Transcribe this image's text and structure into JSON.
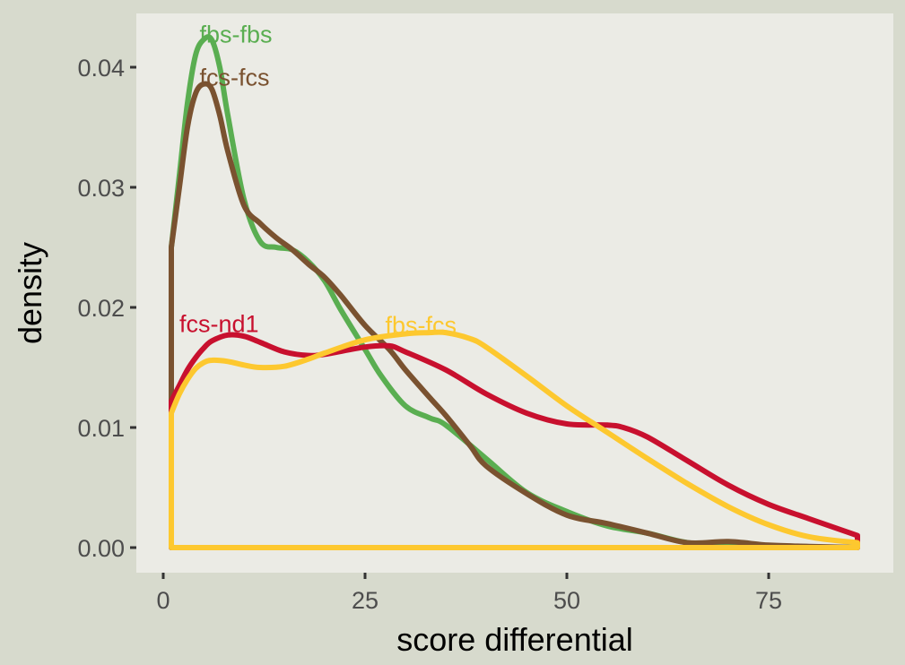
{
  "chart_data": {
    "type": "line",
    "title": "",
    "xlabel": "score differential",
    "ylabel": "density",
    "xlim": [
      -2,
      90
    ],
    "ylim": [
      -0.002,
      0.0446
    ],
    "x_ticks": [
      0,
      25,
      50,
      75
    ],
    "x_tick_labels": [
      "0",
      "25",
      "50",
      "75"
    ],
    "y_ticks": [
      0.0,
      0.01,
      0.02,
      0.03,
      0.04
    ],
    "y_tick_labels": [
      "0.00",
      "0.01",
      "0.02",
      "0.03",
      "0.04"
    ],
    "grid": false,
    "legend": "direct labels on curves",
    "colors": {
      "plot_background": "#d7dacd",
      "panel_background": "#ebebe5",
      "tick_label": "#4d4d4d",
      "tick_mark": "#333333"
    },
    "series": [
      {
        "name": "fbs-fbs",
        "color": "#5aae51",
        "label_pos": [
          4.5,
          0.0428
        ],
        "x": [
          1,
          2,
          3,
          4,
          5,
          6,
          7,
          8,
          10,
          12,
          14,
          16,
          18,
          20,
          22,
          25,
          27,
          30,
          33,
          35,
          40,
          45,
          50,
          55,
          60,
          65,
          70,
          75,
          80,
          86
        ],
        "y": [
          0.025,
          0.031,
          0.037,
          0.041,
          0.0423,
          0.0423,
          0.04,
          0.036,
          0.029,
          0.0255,
          0.025,
          0.0248,
          0.0238,
          0.0222,
          0.0198,
          0.0165,
          0.0143,
          0.0118,
          0.0108,
          0.0102,
          0.0074,
          0.0046,
          0.003,
          0.0018,
          0.0012,
          0.0004,
          0.0002,
          0.0001,
          5e-05,
          0.0
        ]
      },
      {
        "name": "fcs-fcs",
        "color": "#7a5230",
        "label_pos": [
          4.5,
          0.0392
        ],
        "x": [
          1,
          2,
          3,
          4,
          5,
          6,
          7,
          8,
          10,
          12,
          14,
          16,
          18,
          20,
          22,
          25,
          28,
          30,
          33,
          35,
          38,
          40,
          45,
          50,
          55,
          60,
          65,
          70,
          75,
          80,
          86
        ],
        "y": [
          0.025,
          0.03,
          0.035,
          0.0378,
          0.0386,
          0.0382,
          0.036,
          0.033,
          0.0285,
          0.027,
          0.0258,
          0.0248,
          0.0236,
          0.0225,
          0.021,
          0.0185,
          0.0165,
          0.0148,
          0.0125,
          0.011,
          0.0085,
          0.0068,
          0.0045,
          0.0027,
          0.002,
          0.0012,
          0.0004,
          0.0005,
          0.0002,
          0.0001,
          0.0
        ]
      },
      {
        "name": "fcs-nd1",
        "color": "#c8102e",
        "label_pos": [
          2,
          0.0187
        ],
        "x": [
          1,
          2,
          3,
          4,
          5,
          6,
          8,
          10,
          12,
          15,
          18,
          20,
          25,
          28,
          30,
          35,
          40,
          45,
          50,
          55,
          57,
          60,
          65,
          70,
          75,
          80,
          86
        ],
        "y": [
          0.0122,
          0.0135,
          0.0148,
          0.0158,
          0.0166,
          0.0172,
          0.0177,
          0.0176,
          0.0171,
          0.0163,
          0.016,
          0.0161,
          0.0167,
          0.0168,
          0.0163,
          0.0148,
          0.0128,
          0.0112,
          0.0103,
          0.0102,
          0.01,
          0.0092,
          0.0072,
          0.0052,
          0.0036,
          0.0024,
          0.001
        ]
      },
      {
        "name": "fbs-fcs",
        "color": "#fdc82f",
        "label_pos": [
          27.5,
          0.0186
        ],
        "x": [
          1,
          2,
          3,
          4,
          5,
          6,
          8,
          10,
          12,
          15,
          18,
          20,
          25,
          30,
          33,
          35,
          38,
          40,
          45,
          50,
          55,
          60,
          65,
          70,
          75,
          80,
          86
        ],
        "y": [
          0.0112,
          0.0128,
          0.014,
          0.0149,
          0.0154,
          0.0156,
          0.0155,
          0.0152,
          0.015,
          0.0151,
          0.0157,
          0.0162,
          0.0173,
          0.0178,
          0.0179,
          0.0179,
          0.0174,
          0.0167,
          0.0143,
          0.0118,
          0.0096,
          0.0074,
          0.0053,
          0.0034,
          0.0019,
          0.0009,
          0.0004
        ]
      }
    ]
  }
}
